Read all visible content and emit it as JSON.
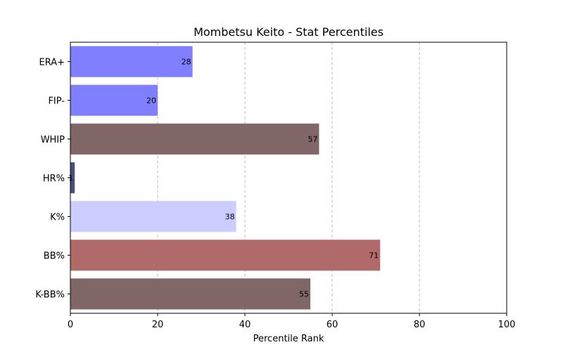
{
  "chart_data": {
    "type": "bar",
    "orientation": "horizontal",
    "title": "Mombetsu Keito - Stat Percentiles",
    "xlabel": "Percentile Rank",
    "ylabel": "",
    "xlim": [
      0,
      100
    ],
    "xticks": [
      0,
      20,
      40,
      60,
      80,
      100
    ],
    "grid": "x-dashed",
    "categories": [
      "ERA+",
      "FIP-",
      "WHIP",
      "HR%",
      "K%",
      "BB%",
      "K-BB%"
    ],
    "values": [
      28,
      20,
      57,
      1,
      38,
      71,
      55
    ],
    "colors": [
      "#8080ff",
      "#8080ff",
      "#806666",
      "#4d4d80",
      "#ccccff",
      "#b06a6a",
      "#806666"
    ]
  }
}
